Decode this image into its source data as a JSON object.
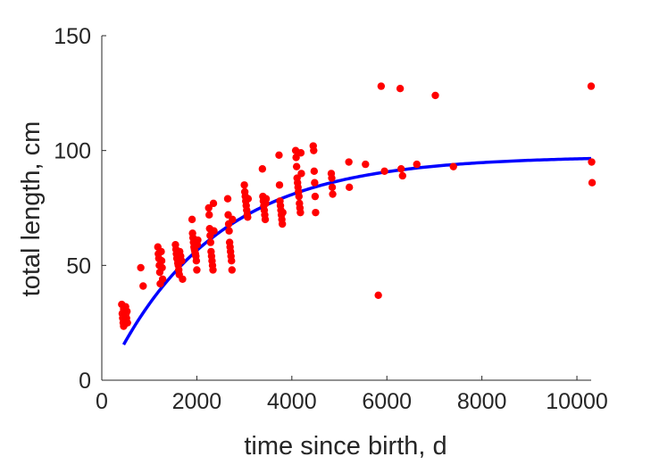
{
  "chart_data": {
    "type": "scatter",
    "xlabel": "time since birth, d",
    "ylabel": "total length, cm",
    "xlim": [
      0,
      10300
    ],
    "ylim": [
      0,
      150
    ],
    "xticks": [
      "0",
      "2000",
      "4000",
      "6000",
      "8000",
      "10000"
    ],
    "yticks": [
      "0",
      "50",
      "100",
      "150"
    ],
    "grid": false,
    "colors": {
      "points": "#ff0000",
      "fit": "#0000ff",
      "axis": "#262626"
    },
    "fit_curve": {
      "type": "line",
      "x_start": 460,
      "x_end": 10300,
      "asymptote": 97.5,
      "y_at_start": 15.5,
      "shape": "von Bertalanffy growth curve"
    },
    "points": [
      [
        420,
        33
      ],
      [
        430,
        29
      ],
      [
        440,
        27
      ],
      [
        450,
        25
      ],
      [
        460,
        31
      ],
      [
        470,
        24
      ],
      [
        480,
        28
      ],
      [
        490,
        30
      ],
      [
        500,
        26
      ],
      [
        510,
        29
      ],
      [
        520,
        27
      ],
      [
        530,
        30
      ],
      [
        540,
        25
      ],
      [
        460,
        23.5
      ],
      [
        500,
        32
      ],
      [
        820,
        49
      ],
      [
        870,
        41
      ],
      [
        1180,
        58
      ],
      [
        1190,
        55
      ],
      [
        1200,
        53
      ],
      [
        1210,
        50
      ],
      [
        1220,
        47
      ],
      [
        1230,
        42
      ],
      [
        1250,
        56
      ],
      [
        1260,
        52
      ],
      [
        1270,
        49
      ],
      [
        1280,
        44
      ],
      [
        1550,
        59
      ],
      [
        1560,
        57
      ],
      [
        1570,
        55
      ],
      [
        1580,
        53
      ],
      [
        1600,
        51
      ],
      [
        1610,
        50
      ],
      [
        1620,
        48
      ],
      [
        1630,
        46
      ],
      [
        1640,
        56
      ],
      [
        1660,
        54
      ],
      [
        1680,
        52
      ],
      [
        1700,
        44
      ],
      [
        1900,
        70
      ],
      [
        1910,
        64
      ],
      [
        1920,
        62
      ],
      [
        1930,
        60
      ],
      [
        1940,
        58
      ],
      [
        1950,
        57
      ],
      [
        1960,
        56
      ],
      [
        1970,
        55
      ],
      [
        1980,
        54
      ],
      [
        1990,
        52
      ],
      [
        2000,
        48
      ],
      [
        2010,
        59
      ],
      [
        2020,
        61
      ],
      [
        2250,
        75
      ],
      [
        2260,
        72
      ],
      [
        2270,
        66
      ],
      [
        2280,
        63
      ],
      [
        2290,
        60
      ],
      [
        2300,
        56
      ],
      [
        2310,
        54
      ],
      [
        2320,
        52
      ],
      [
        2330,
        50
      ],
      [
        2340,
        48
      ],
      [
        2350,
        77
      ],
      [
        2360,
        65
      ],
      [
        2650,
        79
      ],
      [
        2660,
        72
      ],
      [
        2670,
        68
      ],
      [
        2680,
        65
      ],
      [
        2690,
        60
      ],
      [
        2700,
        58
      ],
      [
        2710,
        56
      ],
      [
        2720,
        54
      ],
      [
        2730,
        52
      ],
      [
        2740,
        48
      ],
      [
        2750,
        70
      ],
      [
        3000,
        85
      ],
      [
        3010,
        82
      ],
      [
        3020,
        80
      ],
      [
        3030,
        78
      ],
      [
        3040,
        76
      ],
      [
        3050,
        74
      ],
      [
        3060,
        72
      ],
      [
        3070,
        71
      ],
      [
        3080,
        79
      ],
      [
        3380,
        92
      ],
      [
        3390,
        80
      ],
      [
        3400,
        78
      ],
      [
        3410,
        76
      ],
      [
        3420,
        74
      ],
      [
        3430,
        72
      ],
      [
        3440,
        70
      ],
      [
        3450,
        77
      ],
      [
        3460,
        79
      ],
      [
        3730,
        98
      ],
      [
        3740,
        85
      ],
      [
        3750,
        78
      ],
      [
        3760,
        76
      ],
      [
        3770,
        74
      ],
      [
        3780,
        72
      ],
      [
        3790,
        70
      ],
      [
        3800,
        68
      ],
      [
        3810,
        73
      ],
      [
        4080,
        100
      ],
      [
        4090,
        97
      ],
      [
        4100,
        93
      ],
      [
        4110,
        88
      ],
      [
        4120,
        86
      ],
      [
        4130,
        84
      ],
      [
        4140,
        82
      ],
      [
        4150,
        80
      ],
      [
        4160,
        77
      ],
      [
        4170,
        75
      ],
      [
        4180,
        73
      ],
      [
        4190,
        99
      ],
      [
        4200,
        90
      ],
      [
        4450,
        102
      ],
      [
        4460,
        100
      ],
      [
        4470,
        91
      ],
      [
        4480,
        86
      ],
      [
        4490,
        80
      ],
      [
        4500,
        73
      ],
      [
        4830,
        90
      ],
      [
        4840,
        88
      ],
      [
        4850,
        84
      ],
      [
        4860,
        81
      ],
      [
        5200,
        95
      ],
      [
        5210,
        84
      ],
      [
        5550,
        94
      ],
      [
        5820,
        37
      ],
      [
        5880,
        128
      ],
      [
        5950,
        91
      ],
      [
        6280,
        127
      ],
      [
        6300,
        92
      ],
      [
        6330,
        89
      ],
      [
        6630,
        94
      ],
      [
        7020,
        124
      ],
      [
        7400,
        93
      ],
      [
        10300,
        128
      ],
      [
        10310,
        95
      ],
      [
        10320,
        86
      ]
    ]
  }
}
